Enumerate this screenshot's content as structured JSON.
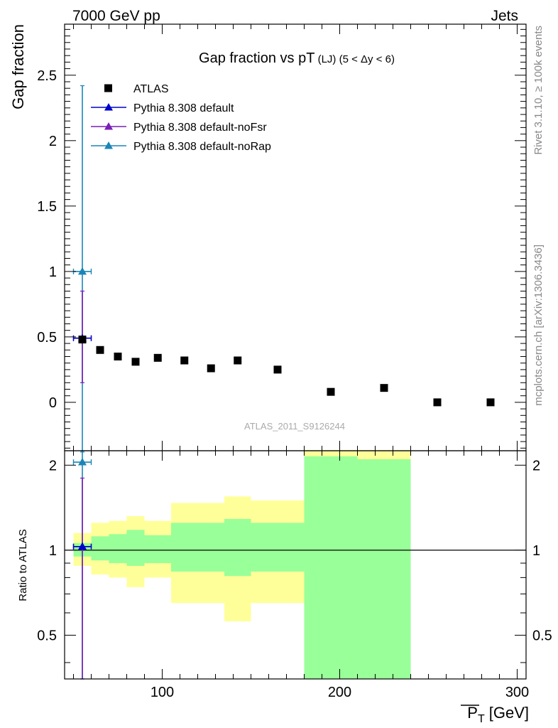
{
  "header": {
    "energy_label": "7000 GeV pp",
    "process_label": "Jets"
  },
  "side": {
    "rivet_label": "Rivet 3.1.10, ≥ 100k events",
    "mcplots_label": "mcplots.cern.ch [arXiv:1306.3436]"
  },
  "chart_data": [
    {
      "type": "scatter",
      "title": "Gap fraction vs pT (LJ) (5 < Δy < 6)",
      "ylabel": "Gap fraction",
      "xlim": [
        45,
        305
      ],
      "ylim": [
        -0.37,
        2.89
      ],
      "y_ticks": [
        0,
        0.5,
        1,
        1.5,
        2,
        2.5
      ],
      "y_tick_labels": [
        "0",
        "0.5",
        "1",
        "1.5",
        "2",
        "2.5"
      ],
      "watermark": "ATLAS_2011_S9126244",
      "legend_position": "top-left",
      "legend": [
        {
          "label": "ATLAS",
          "marker": "square",
          "color": "#000000"
        },
        {
          "label": "Pythia 8.308 default",
          "marker": "triangle",
          "color": "#0000cc"
        },
        {
          "label": "Pythia 8.308 default-noFsr",
          "marker": "triangle",
          "color": "#7a1fb5"
        },
        {
          "label": "Pythia 8.308 default-noRap",
          "marker": "triangle",
          "color": "#1a86b8"
        }
      ],
      "series": [
        {
          "name": "ATLAS",
          "x": [
            55,
            65,
            75,
            85,
            97.5,
            112.5,
            127.5,
            142.5,
            165,
            195,
            225,
            255,
            285
          ],
          "y": [
            0.48,
            0.4,
            0.35,
            0.31,
            0.34,
            0.32,
            0.26,
            0.32,
            0.25,
            0.08,
            0.11,
            0.0,
            0.0
          ]
        },
        {
          "name": "Pythia 8.308 default",
          "x": [
            55
          ],
          "y": [
            0.49
          ],
          "xerr": [
            5
          ],
          "yerr_low": [
            0.0
          ],
          "yerr_high": [
            0.0
          ]
        },
        {
          "name": "Pythia 8.308 default-noFsr",
          "x": [
            55
          ],
          "y": [
            0.49
          ],
          "xerr": [
            5
          ],
          "yerr_low": [
            0.34
          ],
          "yerr_high": [
            0.36
          ]
        },
        {
          "name": "Pythia 8.308 default-noRap",
          "x": [
            55
          ],
          "y": [
            1.0
          ],
          "xerr": [
            5
          ],
          "yerr_low": [
            1.38
          ],
          "yerr_high": [
            1.42
          ]
        }
      ]
    },
    {
      "type": "area",
      "ylabel": "Ratio to ATLAS",
      "xlabel": "P̅T [GeV]",
      "xlabel_main": "P",
      "xlabel_sub": "T",
      "xlabel_unit": "[GeV]",
      "xlim": [
        45,
        305
      ],
      "ylim": [
        0.35,
        2.25
      ],
      "y_scale": "log",
      "y_ticks": [
        0.5,
        1,
        2
      ],
      "y_tick_labels": [
        "0.5",
        "1",
        "2"
      ],
      "x_ticks": [
        100,
        200,
        300
      ],
      "x_tick_labels": [
        "100",
        "200",
        "300"
      ],
      "reference_line": 1,
      "bands": {
        "x_edges": [
          50,
          60,
          70,
          80,
          90,
          105,
          120,
          135,
          150,
          180,
          210,
          240
        ],
        "yellow_low": [
          0.88,
          0.82,
          0.8,
          0.74,
          0.8,
          0.65,
          0.65,
          0.56,
          0.65,
          0.35,
          0.35
        ],
        "yellow_high": [
          1.15,
          1.25,
          1.27,
          1.32,
          1.27,
          1.47,
          1.47,
          1.55,
          1.5,
          2.25,
          2.25
        ],
        "green_low": [
          0.95,
          0.92,
          0.9,
          0.88,
          0.9,
          0.84,
          0.84,
          0.81,
          0.84,
          0.35,
          0.35
        ],
        "green_high": [
          1.06,
          1.12,
          1.14,
          1.18,
          1.13,
          1.25,
          1.25,
          1.29,
          1.25,
          2.15,
          2.1
        ]
      },
      "series": [
        {
          "name": "Pythia 8.308 default",
          "x": [
            55
          ],
          "y": [
            1.03
          ],
          "xerr": [
            5
          ],
          "yerr_low": [
            0.0
          ],
          "yerr_high": [
            0.0
          ]
        },
        {
          "name": "Pythia 8.308 default-noFsr",
          "x": [
            55
          ],
          "y": [
            1.03
          ],
          "xerr": [
            5
          ],
          "yerr_low": [
            0.73
          ],
          "yerr_high": [
            0.77
          ]
        },
        {
          "name": "Pythia 8.308 default-noRap",
          "x": [
            55
          ],
          "y": [
            2.05
          ],
          "xerr": [
            5
          ],
          "yerr_low": [
            1.75
          ],
          "yerr_high": [
            0.5
          ]
        }
      ]
    }
  ]
}
